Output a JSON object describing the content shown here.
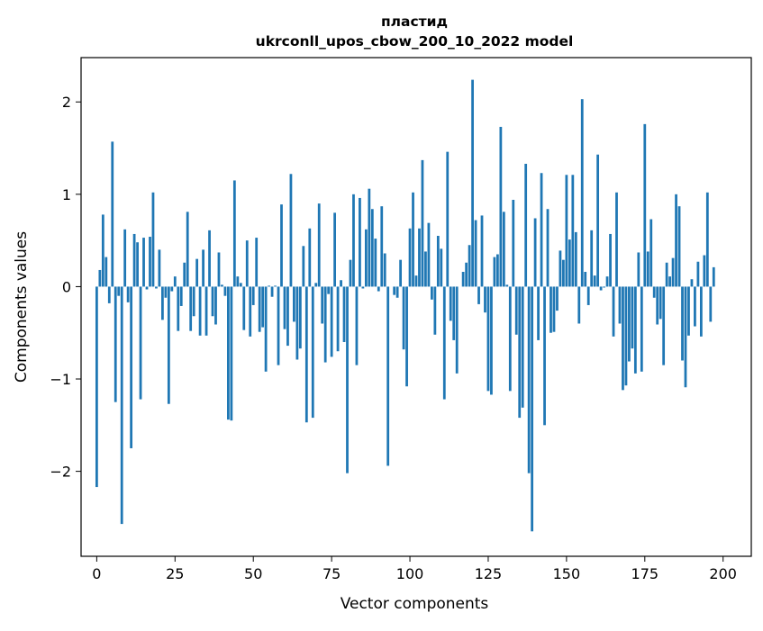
{
  "chart_data": {
    "type": "bar",
    "title": "пластид",
    "subtitle": "ukrconll_upos_cbow_200_10_2022 model",
    "xlabel": "Vector components",
    "ylabel": "Components values",
    "xlim": [
      -5,
      209
    ],
    "ylim": [
      -2.92,
      2.48
    ],
    "xticks": [
      0,
      25,
      50,
      75,
      100,
      125,
      150,
      175,
      200
    ],
    "yticks": [
      -2,
      -1,
      0,
      1,
      2
    ],
    "ytick_labels": [
      "−2",
      "−1",
      "0",
      "1",
      "2"
    ],
    "bar_color": "#1f77b4",
    "grid": false,
    "values": [
      -2.17,
      0.18,
      0.78,
      0.32,
      -0.18,
      1.57,
      -1.25,
      -0.1,
      -2.57,
      0.62,
      -0.17,
      -1.75,
      0.57,
      0.48,
      -1.22,
      0.53,
      -0.03,
      0.54,
      1.02,
      -0.02,
      0.4,
      -0.36,
      -0.12,
      -1.27,
      -0.05,
      0.11,
      -0.48,
      -0.21,
      0.26,
      0.81,
      -0.48,
      -0.32,
      0.3,
      -0.53,
      0.4,
      -0.53,
      0.61,
      -0.32,
      -0.41,
      0.37,
      0.02,
      -0.1,
      -1.44,
      -1.45,
      1.15,
      0.11,
      0.04,
      -0.47,
      0.5,
      -0.54,
      -0.2,
      0.53,
      -0.49,
      -0.44,
      -0.92,
      0.01,
      -0.11,
      0.01,
      -0.85,
      0.89,
      -0.46,
      -0.64,
      1.22,
      -0.38,
      -0.79,
      -0.67,
      0.44,
      -1.47,
      0.63,
      -1.42,
      0.04,
      0.9,
      -0.4,
      -0.82,
      -0.08,
      -0.76,
      0.8,
      -0.7,
      0.07,
      -0.6,
      -2.02,
      0.29,
      1.0,
      -0.85,
      0.96,
      -0.02,
      0.62,
      1.06,
      0.84,
      0.52,
      -0.05,
      0.87,
      0.36,
      -1.94,
      0.0,
      -0.09,
      -0.12,
      0.29,
      -0.68,
      -1.08,
      0.63,
      1.02,
      0.12,
      0.63,
      1.37,
      0.38,
      0.69,
      -0.14,
      -0.52,
      0.55,
      0.41,
      -1.22,
      1.46,
      -0.37,
      -0.58,
      -0.94,
      0.0,
      0.16,
      0.26,
      0.45,
      2.24,
      0.72,
      -0.19,
      0.77,
      -0.28,
      -1.13,
      -1.17,
      0.32,
      0.35,
      1.73,
      0.81,
      0.02,
      -1.13,
      0.94,
      -0.52,
      -1.42,
      -1.31,
      1.33,
      -2.02,
      -2.65,
      0.74,
      -0.58,
      1.23,
      -1.5,
      0.84,
      -0.5,
      -0.49,
      -0.26,
      0.39,
      0.29,
      1.21,
      0.51,
      1.21,
      0.59,
      -0.4,
      2.03,
      0.16,
      -0.2,
      0.61,
      0.12,
      1.43,
      -0.04,
      -0.01,
      0.11,
      0.57,
      -0.54,
      1.02,
      -0.4,
      -1.12,
      -1.07,
      -0.81,
      -0.67,
      -0.94,
      0.37,
      -0.92,
      1.76,
      0.38,
      0.73,
      -0.12,
      -0.41,
      -0.35,
      -0.85,
      0.26,
      0.11,
      0.31,
      1.0,
      0.87,
      -0.8,
      -1.09,
      -0.53,
      0.08,
      -0.43,
      0.27,
      -0.54,
      0.34,
      1.02,
      -0.38,
      0.21
    ]
  }
}
